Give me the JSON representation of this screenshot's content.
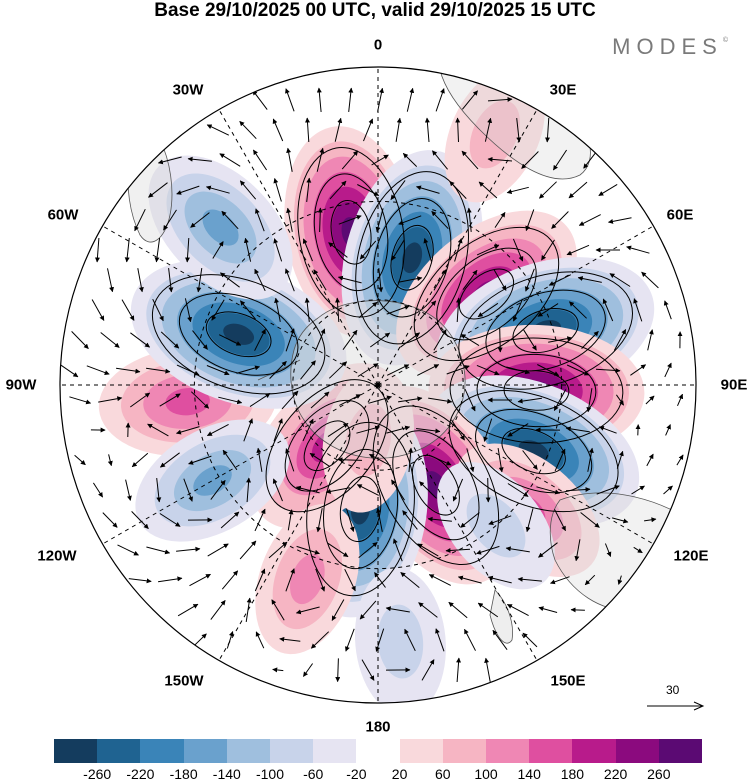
{
  "title": "Base 29/10/2025 00 UTC, valid 29/10/2025 15 UTC",
  "brand": "MODES",
  "brand_mark": "©",
  "longitude_labels": {
    "top": "0",
    "top_right": "30E",
    "right_upper": "60E",
    "right": "90E",
    "right_lower": "120E",
    "bottom_right": "150E",
    "bottom": "180",
    "bottom_left": "150W",
    "left_lower": "120W",
    "left": "90W",
    "left_upper": "60W",
    "top_left": "30W"
  },
  "reference_vector": {
    "value": "30"
  },
  "colorbar": {
    "labels": [
      "-260",
      "-220",
      "-180",
      "-140",
      "-100",
      "-60",
      "-20",
      "20",
      "60",
      "100",
      "140",
      "180",
      "220",
      "260"
    ],
    "colors": [
      "#143c5e",
      "#1f6391",
      "#3a84b8",
      "#6aa1cd",
      "#9fbfde",
      "#c8d3ea",
      "#e6e4f2",
      "#ffffff",
      "#f9d9dc",
      "#f6b5c3",
      "#ef87b4",
      "#df4fa0",
      "#b81b8b",
      "#8b0a7e",
      "#5b0a73"
    ]
  },
  "field": {
    "anomalies": [
      {
        "name": "pos-30w",
        "lon": -10,
        "colat": 52,
        "value": 225
      },
      {
        "name": "neg-10e",
        "lon": 15,
        "colat": 45,
        "value": -240
      },
      {
        "name": "pos-45e",
        "lon": 50,
        "colat": 48,
        "value": 215
      },
      {
        "name": "neg-70e",
        "lon": 72,
        "colat": 58,
        "value": -250
      },
      {
        "name": "pos-90e",
        "lon": 92,
        "colat": 53,
        "value": 230
      },
      {
        "name": "neg-110e",
        "lon": 113,
        "colat": 56,
        "value": -245
      },
      {
        "name": "pos-150e",
        "lon": 150,
        "colat": 40,
        "value": 230
      },
      {
        "name": "pos-130e",
        "lon": 130,
        "colat": 63,
        "value": 110
      },
      {
        "name": "neg-175w",
        "lon": -172,
        "colat": 43,
        "value": -235
      },
      {
        "name": "pos-140w",
        "lon": -140,
        "colat": 28,
        "value": 170
      },
      {
        "name": "pos-95w",
        "lon": -95,
        "colat": 62,
        "value": 135
      },
      {
        "name": "neg-120w",
        "lon": -120,
        "colat": 62,
        "value": -110
      },
      {
        "name": "neg-70w",
        "lon": -70,
        "colat": 50,
        "value": -250
      },
      {
        "name": "neg-45w",
        "lon": -45,
        "colat": 70,
        "value": -125
      },
      {
        "name": "neg-140e",
        "lon": 140,
        "colat": 60,
        "value": -60
      },
      {
        "name": "pos-160w",
        "lon": -160,
        "colat": 66,
        "value": 80
      },
      {
        "name": "pos-20e",
        "lon": 25,
        "colat": 82,
        "value": 50
      },
      {
        "name": "neg-175e",
        "lon": 175,
        "colat": 78,
        "value": -60
      },
      {
        "name": "pos-170w",
        "lon": -170,
        "colat": 20,
        "value": 55
      }
    ]
  }
}
